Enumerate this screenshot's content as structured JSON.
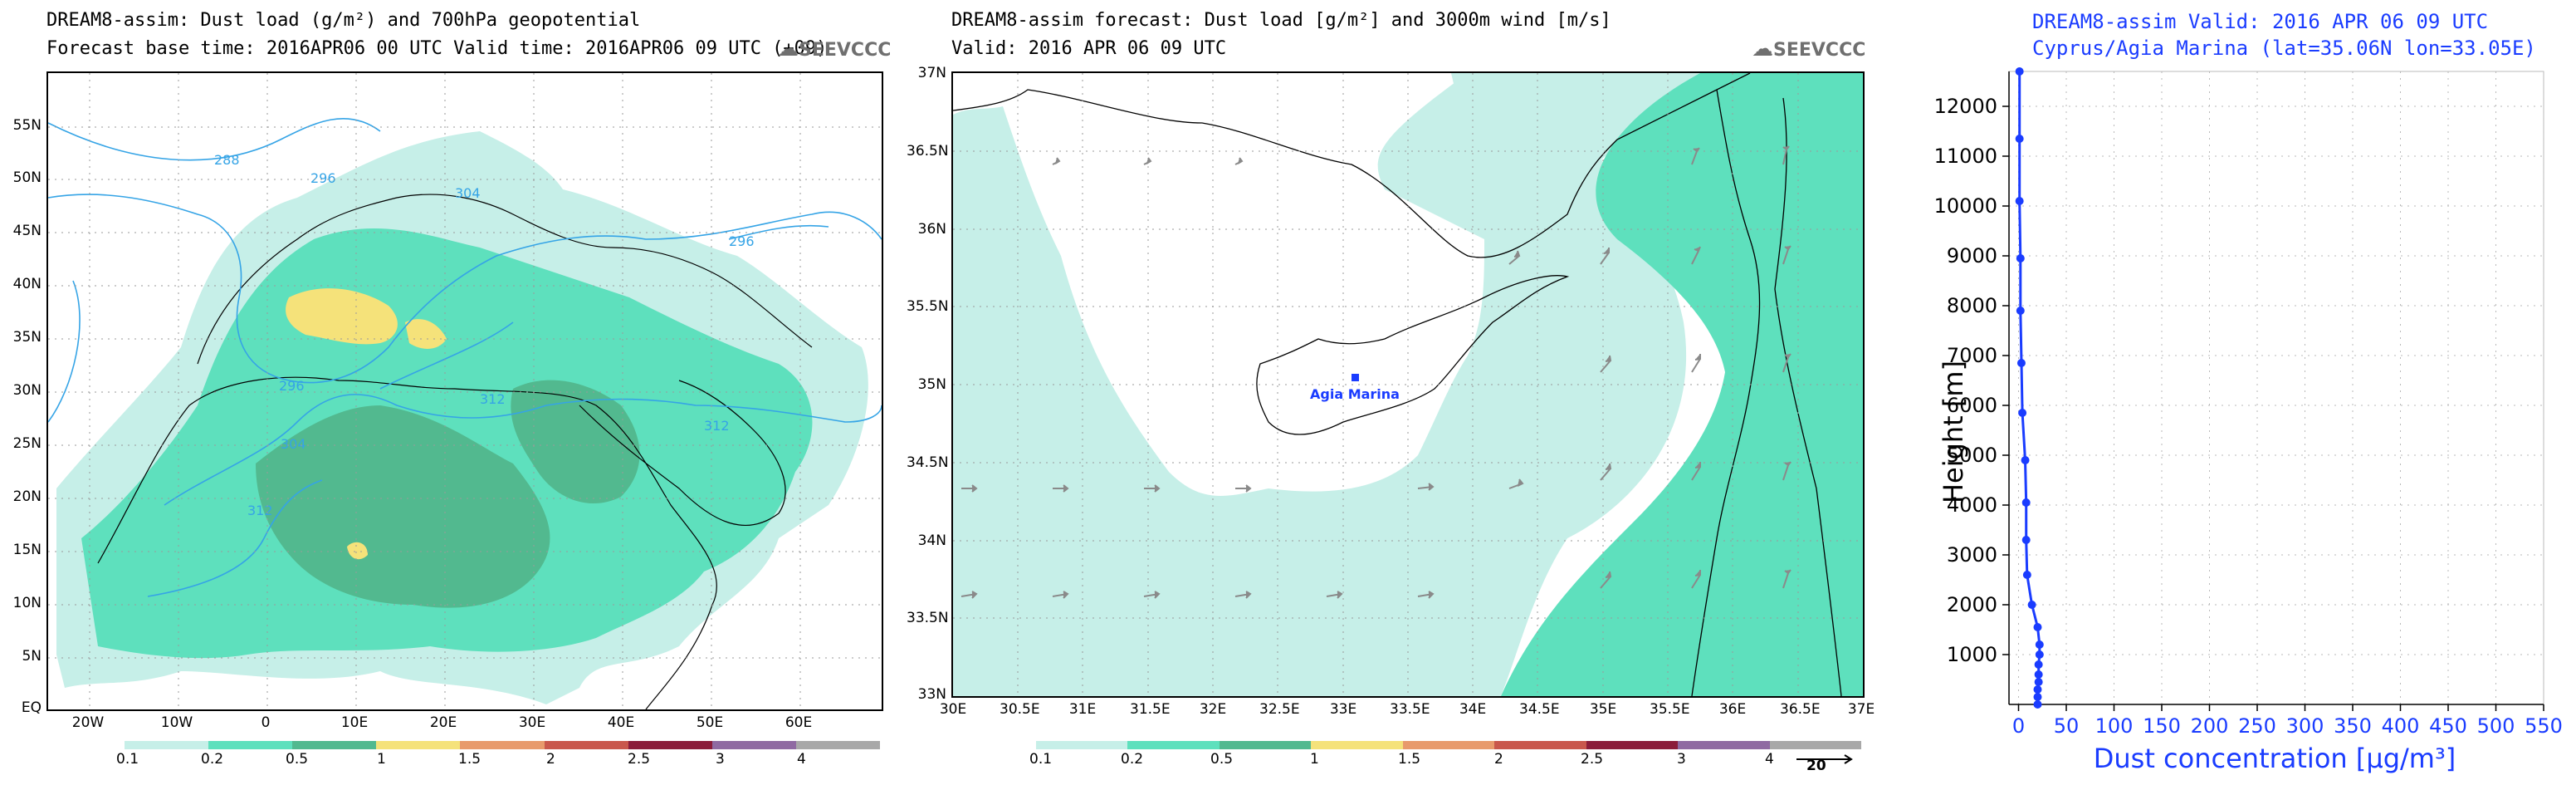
{
  "colors": {
    "c01": "#c6efe8",
    "c02": "#5ee0bd",
    "c05": "#52b98f",
    "c1": "#f5e27a",
    "c15": "#e89a6c",
    "c2": "#c9574c",
    "c25": "#8b1c3a",
    "c3": "#8f6aa2",
    "c4": "#a8a8a8",
    "contour": "#35a4e6",
    "profile": "#1a3cff"
  },
  "logo_text": "SEEVCCC",
  "panel1": {
    "title_line1": "DREAM8-assim: Dust load (g/m²) and 700hPa geopotential",
    "title_line2": "Forecast base time: 2016APR06 00 UTC  Valid time: 2016APR06 09 UTC  (+09)",
    "lat_labels": [
      "55N",
      "50N",
      "45N",
      "40N",
      "35N",
      "30N",
      "25N",
      "20N",
      "15N",
      "10N",
      "5N",
      "EQ"
    ],
    "lon_labels": [
      "20W",
      "10W",
      "0",
      "10E",
      "20E",
      "30E",
      "40E",
      "50E",
      "60E"
    ],
    "contour_labels": [
      "288",
      "296",
      "304",
      "296",
      "296",
      "304",
      "312",
      "312",
      "312"
    ],
    "colorbar_labels": [
      "0.1",
      "0.2",
      "0.5",
      "1",
      "1.5",
      "2",
      "2.5",
      "3",
      "4"
    ]
  },
  "panel2": {
    "title_line1": "DREAM8-assim forecast: Dust load [g/m²] and 3000m wind [m/s]",
    "title_line2": "Valid: 2016 APR 06  09 UTC",
    "lat_labels": [
      "37N",
      "36.5N",
      "36N",
      "35.5N",
      "35N",
      "34.5N",
      "34N",
      "33.5N",
      "33N"
    ],
    "lon_labels": [
      "30E",
      "30.5E",
      "31E",
      "31.5E",
      "32E",
      "32.5E",
      "33E",
      "33.5E",
      "34E",
      "34.5E",
      "35E",
      "35.5E",
      "36E",
      "36.5E",
      "37E"
    ],
    "station_label": "Agia Marina",
    "colorbar_labels": [
      "0.1",
      "0.2",
      "0.5",
      "1",
      "1.5",
      "2",
      "2.5",
      "3",
      "4"
    ],
    "wind_ref": "20"
  },
  "panel3": {
    "title_line1": "DREAM8-assim  Valid: 2016 APR 06  09 UTC",
    "title_line2": "Cyprus/Agia Marina (lat=35.06N lon=33.05E)"
  },
  "chart_data": [
    {
      "type": "heatmap",
      "title": "DREAM8-assim: Dust load (g/m²) and 700hPa geopotential",
      "variable": "dust load (g/m²) with 700hPa geopotential contours (dam)",
      "levels": [
        0.1,
        0.2,
        0.5,
        1,
        1.5,
        2,
        2.5,
        3,
        4
      ],
      "lon_range": [
        "25W",
        "70E"
      ],
      "lat_range": [
        "EQ",
        "60N"
      ],
      "contour_values": [
        288,
        296,
        304,
        312
      ]
    },
    {
      "type": "heatmap",
      "title": "DREAM8-assim forecast: Dust load [g/m²] and 3000m wind [m/s]",
      "variable": "dust load [g/m²] with 3000m wind vectors",
      "levels": [
        0.1,
        0.2,
        0.5,
        1,
        1.5,
        2,
        2.5,
        3,
        4
      ],
      "lon_range": [
        30,
        37
      ],
      "lat_range": [
        33,
        37
      ],
      "station": {
        "name": "Agia Marina",
        "lat": 35.06,
        "lon": 33.05
      },
      "wind_reference": 20
    },
    {
      "type": "line",
      "title": "DREAM8-assim  Valid: 2016 APR 06  09 UTC",
      "subtitle": "Cyprus/Agia Marina (lat=35.06N lon=33.05E)",
      "xlabel": "Dust concentration [μg/m³]",
      "ylabel": "Height [m]",
      "xlim": [
        -10,
        550
      ],
      "ylim": [
        0,
        12700
      ],
      "x_ticks": [
        0,
        50,
        100,
        150,
        200,
        250,
        300,
        350,
        400,
        450,
        500,
        550
      ],
      "y_ticks": [
        1000,
        2000,
        3000,
        4000,
        5000,
        6000,
        7000,
        8000,
        9000,
        10000,
        11000,
        12000
      ],
      "series": [
        {
          "name": "Dust concentration",
          "points": [
            [
              20,
              0
            ],
            [
              20,
              150
            ],
            [
              20,
              300
            ],
            [
              21,
              450
            ],
            [
              21,
              600
            ],
            [
              21,
              800
            ],
            [
              22,
              1000
            ],
            [
              22,
              1200
            ],
            [
              20,
              1550
            ],
            [
              14,
              2000
            ],
            [
              9,
              2600
            ],
            [
              8,
              3300
            ],
            [
              8,
              4050
            ],
            [
              7,
              4900
            ],
            [
              4,
              5850
            ],
            [
              3,
              6850
            ],
            [
              2,
              7900
            ],
            [
              2,
              8950
            ],
            [
              1,
              10100
            ],
            [
              1,
              11350
            ],
            [
              1,
              12700
            ]
          ]
        }
      ]
    }
  ]
}
